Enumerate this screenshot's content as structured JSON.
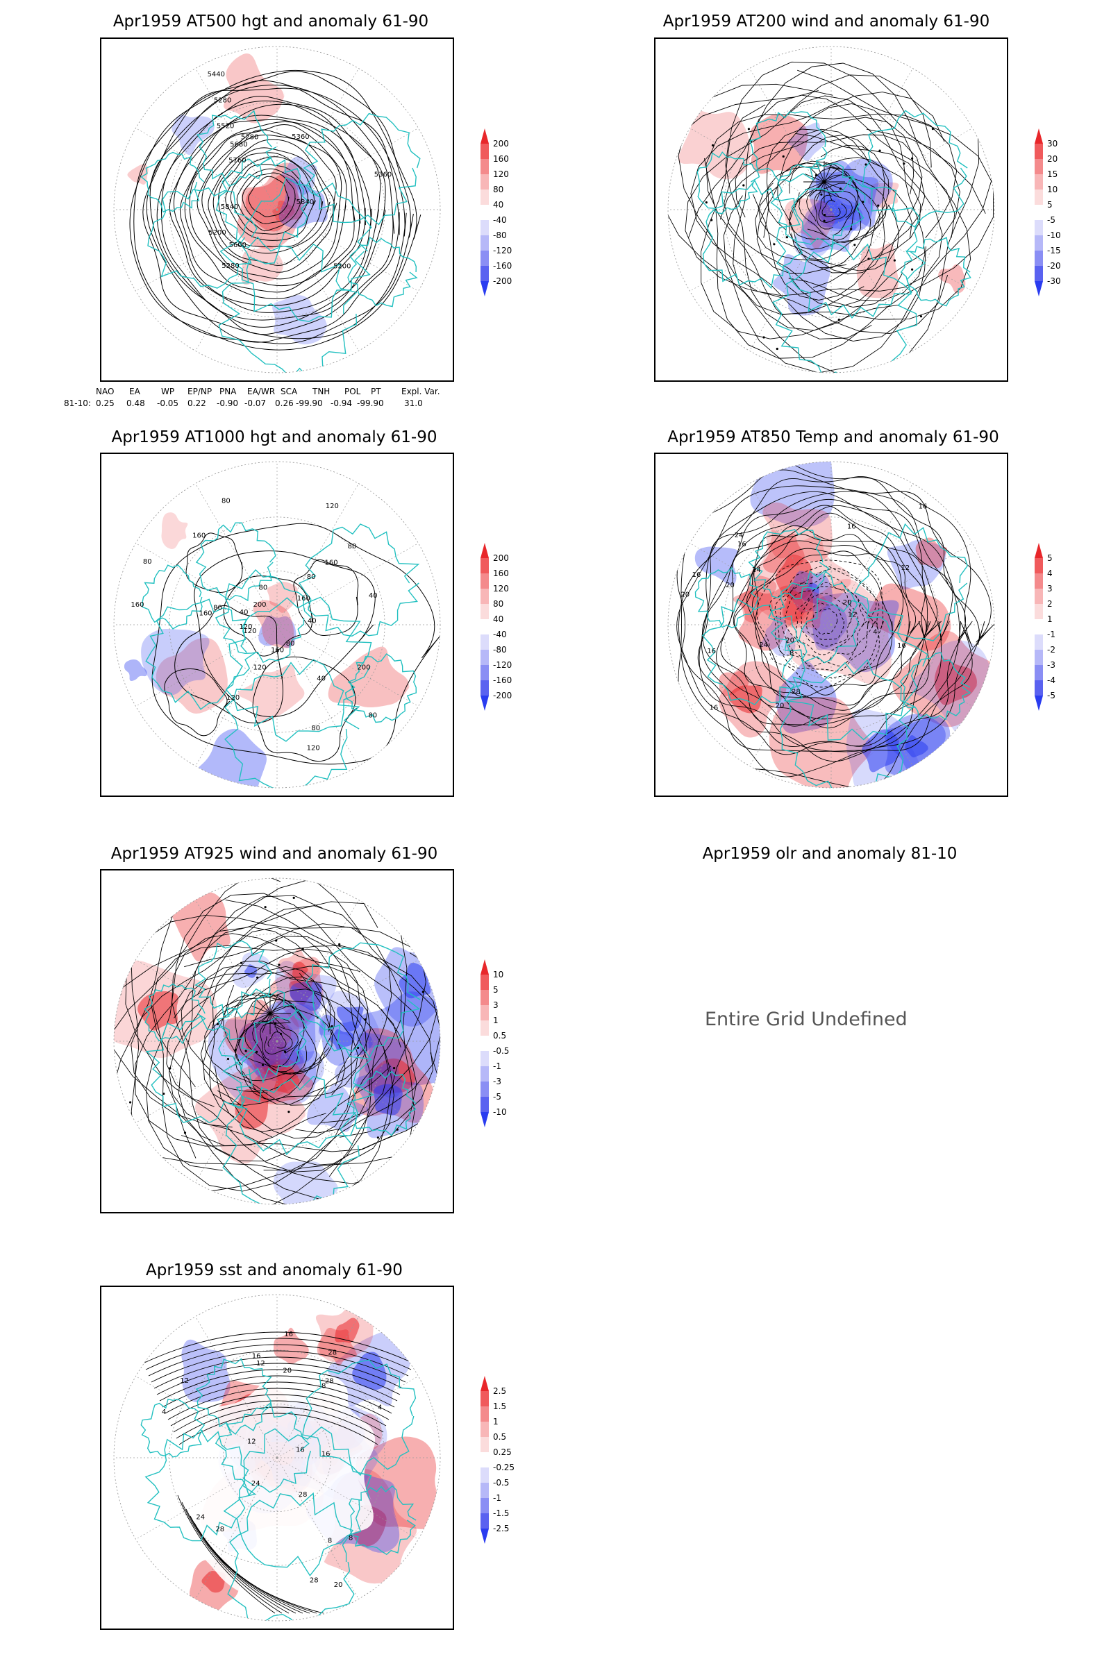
{
  "panels": {
    "p1": {
      "title": "Apr1959 AT500 hgt and anomaly 61-90",
      "contour_labels": [
        "5360",
        "5280",
        "5280",
        "5200",
        "5280",
        "5200",
        "5360",
        "5440",
        "5520",
        "5600",
        "5680",
        "5760",
        "5840",
        "5840"
      ],
      "colorbar": [
        "200",
        "160",
        "120",
        "80",
        "40",
        "-40",
        "-80",
        "-120",
        "-160",
        "-200"
      ]
    },
    "p2": {
      "title": "Apr1959 AT200 wind and anomaly 61-90",
      "colorbar": [
        "30",
        "20",
        "15",
        "10",
        "5",
        "-5",
        "-10",
        "-15",
        "-20",
        "-30"
      ]
    },
    "p3": {
      "title": "Apr1959 AT1000 hgt and anomaly 61-90",
      "contour_labels": [
        "80",
        "80",
        "160",
        "200",
        "160",
        "120",
        "80",
        "120",
        "160",
        "80",
        "120",
        "120",
        "160",
        "40",
        "120",
        "80",
        "80",
        "40",
        "40",
        "160",
        "200",
        "160",
        "120",
        "40",
        "80",
        "80",
        "80"
      ],
      "colorbar": [
        "200",
        "160",
        "120",
        "80",
        "40",
        "-40",
        "-80",
        "-120",
        "-160",
        "-200"
      ]
    },
    "p4": {
      "title": "Apr1959 AT850 Temp and anomaly 61-90",
      "contour_labels": [
        "16",
        "16",
        "4",
        "8",
        "20",
        "12",
        "16",
        "20",
        "24",
        "16",
        "12",
        "16",
        "20",
        "24",
        "16",
        "20",
        "28",
        "24",
        "16",
        "20"
      ],
      "colorbar": [
        "5",
        "4",
        "3",
        "2",
        "1",
        "-1",
        "-2",
        "-3",
        "-4",
        "-5"
      ]
    },
    "p5": {
      "title": "Apr1959 AT925 wind and anomaly 61-90",
      "colorbar": [
        "10",
        "5",
        "3",
        "1",
        "0.5",
        "-0.5",
        "-1",
        "-3",
        "-5",
        "-10"
      ]
    },
    "p6": {
      "title": "Apr1959 olr and anomaly 81-10",
      "message": "Entire Grid Undefined"
    },
    "p7": {
      "title": "Apr1959 sst and anomaly 61-90",
      "contour_labels": [
        "28",
        "28",
        "24",
        "24",
        "20",
        "20",
        "16",
        "16",
        "12",
        "12",
        "8",
        "8",
        "4",
        "4",
        "8",
        "12",
        "16",
        "16",
        "28",
        "28",
        "28"
      ],
      "colorbar": [
        "2.5",
        "1.5",
        "1",
        "0.5",
        "0.25",
        "-0.25",
        "-0.5",
        "-1",
        "-1.5",
        "-2.5"
      ]
    }
  },
  "indices": {
    "headers": [
      "NAO",
      "EA",
      "WP",
      "EP/NP",
      "PNA",
      "EA/WR",
      "SCA",
      "TNH",
      "POL",
      "PT",
      "Expl. Var."
    ],
    "row_label": "81-10:",
    "values": [
      "0.25",
      "0.48",
      "-0.05",
      "0.22",
      "-0.90",
      "-0.07",
      "0.26",
      "-99.90",
      "-0.94",
      "-99.90",
      "31.0"
    ]
  },
  "colors": {
    "coast": "#22c0c0",
    "anom_pos": "#e8262a",
    "anom_neg": "#2a3cf0",
    "contour": "#000000"
  }
}
